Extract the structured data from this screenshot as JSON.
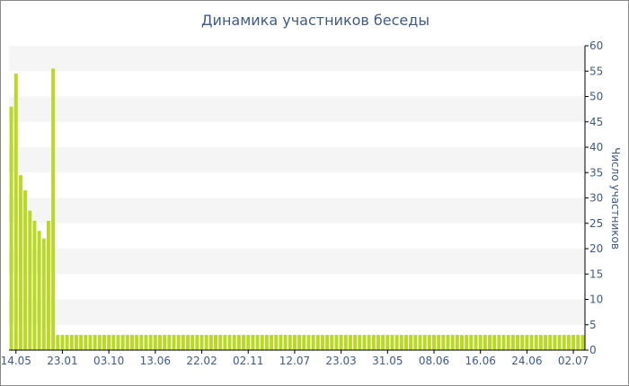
{
  "chart_data": {
    "type": "bar",
    "title": "Динамика участников беседы",
    "xlabel": "",
    "ylabel": "Число участников",
    "ylim": [
      0,
      60
    ],
    "yticks": [
      0,
      5,
      10,
      15,
      20,
      25,
      30,
      35,
      40,
      45,
      50,
      55,
      60
    ],
    "y_axis_side": "right",
    "grid": "alternating horizontal bands",
    "legend": "none",
    "colors": {
      "bar": "#b9d923",
      "band": "#f5f5f5",
      "text": "#3f5a8a",
      "axis": "#000000",
      "frame": "#8a8a8a"
    },
    "x_tick_labels": [
      "14.05",
      "23.01",
      "03.10",
      "13.06",
      "22.02",
      "02.11",
      "12.07",
      "23.03",
      "31.05",
      "08.06",
      "16.06",
      "24.06",
      "02.07"
    ],
    "x_tick_label_bar_index": [
      1,
      11,
      21,
      31,
      41,
      51,
      61,
      71,
      81,
      91,
      101,
      111,
      121
    ],
    "values": [
      48,
      54.5,
      34.5,
      31.5,
      27.5,
      25.5,
      23.5,
      22,
      25.5,
      55.5,
      3,
      3,
      3,
      3,
      3,
      3,
      3,
      3,
      3,
      3,
      3,
      3,
      3,
      3,
      3,
      3,
      3,
      3,
      3,
      3,
      3,
      3,
      3,
      3,
      3,
      3,
      3,
      3,
      3,
      3,
      3,
      3,
      3,
      3,
      3,
      3,
      3,
      3,
      3,
      3,
      3,
      3,
      3,
      3,
      3,
      3,
      3,
      3,
      3,
      3,
      3,
      3,
      3,
      3,
      3,
      3,
      3,
      3,
      3,
      3,
      3,
      3,
      3,
      3,
      3,
      3,
      3,
      3,
      3,
      3,
      3,
      3,
      3,
      3,
      3,
      3,
      3,
      3,
      3,
      3,
      3,
      3,
      3,
      3,
      3,
      3,
      3,
      3,
      3,
      3,
      3,
      3,
      3,
      3,
      3,
      3,
      3,
      3,
      3,
      3,
      3,
      3,
      3,
      3,
      3,
      3,
      3,
      3,
      3,
      3,
      3,
      3,
      3,
      3
    ]
  }
}
